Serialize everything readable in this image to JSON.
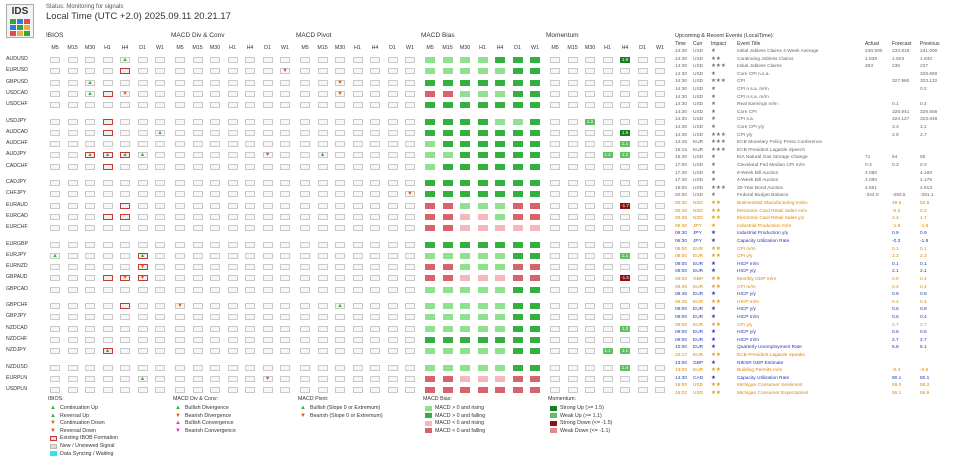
{
  "app": {
    "logo_text": "IDS",
    "status": "Status: Monitoring for signals",
    "time": "Local Time (UTC +2.0)  2025.09.11 20.21.17"
  },
  "panels": [
    {
      "title": "IBIOS",
      "x": 48
    },
    {
      "title": "MACD Div & Conv",
      "x": 173
    },
    {
      "title": "MACD Pivot",
      "x": 298
    },
    {
      "title": "MACD Bias",
      "x": 423
    },
    {
      "title": "Momentum",
      "x": 548
    }
  ],
  "timeframes": [
    "M5",
    "M15",
    "M30",
    "H1",
    "H4",
    "D1",
    "W1"
  ],
  "pairs": [
    "AUDUSD",
    "EURUSD",
    "GBPUSD",
    "USDCAD",
    "USDCHF",
    "USDJPY",
    "AUDCAD",
    "AUDCHF",
    "AUDJPY",
    "CADCHF",
    "CADJPY",
    "CHFJPY",
    "EURAUD",
    "EURCAD",
    "EURCHF",
    "EURGBP",
    "EURJPY",
    "EURNZD",
    "GBPAUD",
    "GBPCAD",
    "GBPCHF",
    "GBPJPY",
    "NZDCAD",
    "NZDCHF",
    "NZDJPY",
    "NZDUSD",
    "EURPLN",
    "USDPLN"
  ],
  "ibios": [
    [
      "",
      "",
      "",
      "",
      "▲u",
      "",
      ""
    ],
    [
      "",
      "",
      "",
      "",
      "",
      "",
      ""
    ],
    [
      "",
      "",
      "▲u",
      "",
      "",
      "",
      ""
    ],
    [
      "",
      "",
      "▲u",
      "",
      "▼d",
      "",
      ""
    ],
    [
      "",
      "",
      "",
      "",
      "",
      "",
      ""
    ],
    [
      "",
      "",
      "",
      "",
      "",
      "",
      ""
    ],
    [
      "",
      "",
      "",
      "",
      "",
      "",
      "▲u"
    ],
    [
      "",
      "",
      "",
      "",
      "",
      "",
      ""
    ],
    [
      "",
      "",
      "▲u",
      "▲u",
      "▲u",
      "▲u",
      ""
    ],
    [
      "",
      "",
      "",
      "",
      "",
      "",
      ""
    ],
    [
      "",
      "",
      "",
      "",
      "",
      "",
      ""
    ],
    [
      "",
      "",
      "",
      "",
      "",
      "",
      ""
    ],
    [
      "",
      "",
      "",
      "",
      "",
      "",
      ""
    ],
    [
      "",
      "",
      "",
      "",
      "",
      "",
      ""
    ],
    [
      "",
      "",
      "",
      "",
      "",
      "",
      ""
    ],
    [
      "",
      "",
      "",
      "",
      "",
      "",
      ""
    ],
    [
      "▲u",
      "",
      "",
      "",
      "",
      "▲u",
      ""
    ],
    [
      "",
      "",
      "",
      "",
      "",
      "▼d",
      ""
    ],
    [
      "",
      "",
      "",
      "",
      "▼d",
      "▼d",
      ""
    ],
    [
      "",
      "",
      "",
      "",
      "",
      "",
      ""
    ],
    [
      "",
      "",
      "",
      "",
      "",
      "",
      ""
    ],
    [
      "",
      "",
      "",
      "",
      "",
      "",
      ""
    ],
    [
      "",
      "",
      "",
      "",
      "",
      "",
      ""
    ],
    [
      "",
      "",
      "",
      "",
      "",
      "",
      ""
    ],
    [
      "",
      "",
      "",
      "▲u",
      "",
      "",
      ""
    ],
    [
      "",
      "",
      "",
      "",
      "",
      "",
      ""
    ],
    [
      "",
      "",
      "",
      "",
      "",
      "▲u",
      ""
    ],
    [
      "",
      "",
      "",
      "",
      "",
      "",
      ""
    ]
  ],
  "ibios_ev": [
    [
      1,
      4
    ],
    [
      3,
      3
    ],
    [
      5,
      3
    ],
    [
      6,
      3
    ],
    [
      8,
      2
    ],
    [
      8,
      3
    ],
    [
      8,
      4
    ],
    [
      9,
      3
    ],
    [
      12,
      4
    ],
    [
      13,
      3
    ],
    [
      13,
      4
    ],
    [
      16,
      5
    ],
    [
      17,
      5
    ],
    [
      18,
      3
    ],
    [
      18,
      4
    ],
    [
      18,
      5
    ],
    [
      20,
      4
    ],
    [
      24,
      3
    ]
  ],
  "macd_div": {
    "1": [
      [
        6,
        "▼m"
      ]
    ],
    "8": [
      [
        5,
        "▼m"
      ]
    ],
    "20": [
      [
        0,
        "▼d"
      ]
    ],
    "26": [
      [
        5,
        "▼m"
      ]
    ]
  },
  "macd_pivot": {
    "2": [
      [
        2,
        "▼d"
      ]
    ],
    "3": [
      [
        2,
        "▼d"
      ]
    ],
    "8": [
      [
        1,
        "▲u"
      ]
    ],
    "11": [
      [
        6,
        "▼d"
      ]
    ],
    "20": [
      [
        2,
        "▲u"
      ]
    ]
  },
  "bias": [
    "LLLLGGGGG",
    "LLLLLGGGG",
    "GGGGGGGGG",
    "RRLLLGGGG",
    "GGGGGGGGG",
    "GGGGLLGGG",
    "GGGGGGGGG",
    "LGGGGGGGG",
    "LLGGGGGGG",
    "LGGGGGGGG",
    "GGGGGGGGG",
    "GGGGGGGGG",
    "RRLLLRRPP",
    "RRPPLRRPP",
    "RRPPPPPPP",
    "GGGGGGGGG",
    "LLLLLGGGG",
    "RRLLLRRPP",
    "RRPPPRRRP",
    "LLLLLGGGG",
    "LLLLLGGGG",
    "LLLLLGGGG",
    "LLLLLGGGG",
    "GGGGGGGGG",
    "LLLLLGGGG",
    "LLLLLGGGG",
    "RRPPPRRRP",
    "RRRRRRRRR"
  ],
  "momentum": {
    "0": [
      [
        4,
        "G",
        "1.9"
      ]
    ],
    "6": [
      [
        4,
        "G",
        "1.6"
      ]
    ],
    "7": [
      [
        4,
        "L",
        "1.1"
      ]
    ],
    "8": [
      [
        3,
        "L",
        "1.4"
      ],
      [
        4,
        "L",
        "1.2"
      ]
    ],
    "12": [
      [
        4,
        "D",
        "-1.7"
      ]
    ],
    "16": [
      [
        4,
        "L",
        "1.1"
      ]
    ],
    "18": [
      [
        4,
        "D",
        "-1.6"
      ]
    ],
    "22": [
      [
        4,
        "L",
        "1.2"
      ]
    ],
    "24": [
      [
        3,
        "L",
        "1.1"
      ],
      [
        4,
        "L",
        "1.1"
      ]
    ],
    "25": [
      [
        4,
        "L",
        "1.4"
      ]
    ],
    "5": [
      [
        2,
        "L",
        "1.2"
      ]
    ]
  },
  "events_header": {
    "title": "Upcoming & Recent Events (LocalTime):",
    "cols": [
      "Time",
      "Curr",
      "Impact",
      "Event Title",
      "Actual",
      "Forecast",
      "Previous"
    ]
  },
  "events": [
    [
      "14:30",
      "USD",
      "1",
      "Initial Jobless Claims 4-Week Average",
      "240.500",
      "233.818",
      "231.000",
      "g"
    ],
    [
      "14:30",
      "USD",
      "2",
      "Continuing Jobless Claims",
      "1.939",
      "1.923",
      "1.940",
      "g"
    ],
    [
      "14:30",
      "USD",
      "3",
      "Initial Jobless Claims",
      "263",
      "235",
      "237",
      "g"
    ],
    [
      "14:30",
      "USD",
      "1",
      "Core CPI n.s.a.",
      "",
      "",
      "328.660",
      "g"
    ],
    [
      "14:30",
      "USD",
      "3",
      "CPI",
      "",
      "327.960",
      "323.132",
      "g"
    ],
    [
      "14:30",
      "USD",
      "1",
      "CPI n.s.a. m/m",
      "",
      "",
      "0.2",
      "g"
    ],
    [
      "14:30",
      "USD",
      "1",
      "CPI n.s.a. m/m",
      "",
      "",
      "",
      "g"
    ],
    [
      "14:30",
      "USD",
      "1",
      "Real Earnings m/m",
      "",
      "0.1",
      "0.4",
      "g"
    ],
    [
      "14:30",
      "USD",
      "1",
      "Core CPI",
      "",
      "328.941",
      "328.656",
      "g"
    ],
    [
      "14:30",
      "USD",
      "1",
      "CPI s.a.",
      "",
      "324.127",
      "323.646",
      "g"
    ],
    [
      "14:30",
      "USD",
      "1",
      "Core CPI y/y",
      "",
      "3.3",
      "3.1",
      "g"
    ],
    [
      "14:30",
      "USD",
      "3",
      "CPI y/y",
      "",
      "2.9",
      "2.7",
      "g"
    ],
    [
      "14:45",
      "EUR",
      "3",
      "ECB Monetary Policy Press Conference",
      "",
      "",
      "",
      "g"
    ],
    [
      "16:15",
      "EUR",
      "3",
      "ECB President Lagarde Speech",
      "",
      "",
      "",
      "g"
    ],
    [
      "16:30",
      "USD",
      "1",
      "EIA Natural Gas Storage Change",
      "71",
      "54",
      "55",
      "g"
    ],
    [
      "17:00",
      "USD",
      "1",
      "Cleveland Fed Median CPI m/m",
      "0.3",
      "0.3",
      "0.3",
      "g"
    ],
    [
      "17:30",
      "USD",
      "1",
      "8-Week Bill Auction",
      "4.080",
      "",
      "4.160",
      "g"
    ],
    [
      "17:30",
      "USD",
      "1",
      "4-Week Bill Auction",
      "4.090",
      "",
      "4.175",
      "g"
    ],
    [
      "19:00",
      "USD",
      "3",
      "30-Year Bond Auction",
      "4.651",
      "",
      "4.813",
      "g"
    ],
    [
      "20:00",
      "USD",
      "1",
      "Federal Budget Balance",
      "-344.0",
      "-293.5",
      "-291.1",
      "g"
    ],
    [
      "00:30",
      "NZD",
      "2",
      "BusinessNZ Manufacturing Index",
      "",
      "49.5",
      "52.8",
      "o"
    ],
    [
      "00:45",
      "NZD",
      "2",
      "Electronic Card Retail Sales m/m",
      "",
      "-0.2",
      "0.2",
      "o"
    ],
    [
      "00:45",
      "NZD",
      "2",
      "Electronic Card Retail Sales y/y",
      "",
      "2.4",
      "1.7",
      "o"
    ],
    [
      "06:30",
      "JPY",
      "1",
      "Industrial Production m/m",
      "",
      "-1.6",
      "-1.6",
      "o"
    ],
    [
      "06:30",
      "JPY",
      "1",
      "Industrial Production y/y",
      "",
      "0.9",
      "0.9",
      "b"
    ],
    [
      "06:30",
      "JPY",
      "1",
      "Capacity Utilization Rate",
      "",
      "-0.3",
      "-1.8",
      "b"
    ],
    [
      "08:00",
      "EUR",
      "2",
      "CPI m/m",
      "",
      "0.1",
      "0.1",
      "o"
    ],
    [
      "08:00",
      "EUR",
      "2",
      "CPI y/y",
      "",
      "2.2",
      "2.2",
      "o"
    ],
    [
      "08:00",
      "EUR",
      "1",
      "HICP m/m",
      "",
      "0.1",
      "0.1",
      "b"
    ],
    [
      "08:00",
      "EUR",
      "1",
      "HICP y/y",
      "",
      "2.1",
      "2.1",
      "b"
    ],
    [
      "08:00",
      "GBP",
      "2",
      "Monthly GDP m/m",
      "",
      "0.0",
      "0.4",
      "o"
    ],
    [
      "08:45",
      "EUR",
      "2",
      "CPI m/m",
      "",
      "0.4",
      "0.4",
      "o"
    ],
    [
      "08:45",
      "EUR",
      "1",
      "HICP y/y",
      "",
      "0.9",
      "0.8",
      "b"
    ],
    [
      "08:45",
      "EUR",
      "2",
      "HICP m/m",
      "",
      "0.4",
      "0.4",
      "o"
    ],
    [
      "09:00",
      "EUR",
      "1",
      "HICP y/y",
      "",
      "0.5",
      "0.8",
      "b"
    ],
    [
      "09:00",
      "EUR",
      "1",
      "HICP m/m",
      "",
      "0.5",
      "0.4",
      "b"
    ],
    [
      "09:00",
      "EUR",
      "2",
      "CPI y/y",
      "",
      "2.7",
      "2.7",
      "o"
    ],
    [
      "09:00",
      "EUR",
      "1",
      "HICP y/y",
      "",
      "0.6",
      "0.6",
      "b"
    ],
    [
      "09:00",
      "EUR",
      "1",
      "HICP m/m",
      "",
      "2.7",
      "2.7",
      "b"
    ],
    [
      "10:00",
      "EUR",
      "1",
      "Quarterly Unemployment Rate",
      "",
      "5.8",
      "6.1",
      "b"
    ],
    [
      "10:17",
      "EUR",
      "2",
      "ECB President Lagarde Speaks",
      "",
      "",
      "",
      "o"
    ],
    [
      "13:00",
      "GBP",
      "1",
      "NIESR GDP Estimate",
      "",
      "",
      "",
      "b"
    ],
    [
      "13:00",
      "EUR",
      "2",
      "Building Permits m/m",
      "",
      "-0.4",
      "-0.6",
      "o"
    ],
    [
      "14:30",
      "CAD",
      "1",
      "Capacity Utilization Rate",
      "",
      "80.1",
      "80.1",
      "b"
    ],
    [
      "16:00",
      "USD",
      "2",
      "Michigan Consumer Sentiment",
      "",
      "58.0",
      "58.2",
      "o"
    ],
    [
      "16:02",
      "USD",
      "2",
      "Michigan Consumer Expectations",
      "",
      "55.1",
      "55.9",
      "o"
    ]
  ],
  "legends": {
    "ibios": {
      "title": "IBIOS:",
      "items": [
        "Continuation Up",
        "Reversal Up",
        "Continuation Down",
        "Reversal Down",
        "Existing IBOB Formation",
        "New / Unviewed Signal",
        "Data Syncing / Waiting"
      ]
    },
    "div": {
      "title": "MACD Div & Conv:",
      "items": [
        "Bullish Divergence",
        "Bearish Divergence",
        "Bullish Convergence",
        "Bearish Convergence"
      ]
    },
    "pivot": {
      "title": "MACD Pivot:",
      "items": [
        "Bullish (Slope 0 or Extremum)",
        "Bearish (Slope 0 or Extremum)"
      ]
    },
    "bias": {
      "title": "MACD Bias:",
      "items": [
        "MACD > 0 and rising",
        "MACD > 0 and falling",
        "MACD < 0 and rising",
        "MACD < 0 and falling"
      ]
    },
    "momentum": {
      "title": "Momentum:",
      "items": [
        "Strong Up (>= 1.5)",
        "Weak Up (>= 1.1)",
        "Strong Down (<= -1.5)",
        "Weak Down (<= -1.1)"
      ]
    }
  },
  "colors": {
    "bias_G": "#34b040",
    "bias_L": "#8fe08f",
    "bias_R": "#d9636b",
    "bias_P": "#f4b7be",
    "mom_G": "#1c7e24",
    "mom_L": "#63bf63",
    "mom_D": "#8a1414",
    "mom_P": "#e08a8a",
    "orange_event": "#dd8500",
    "blue_event": "#2535b5"
  }
}
